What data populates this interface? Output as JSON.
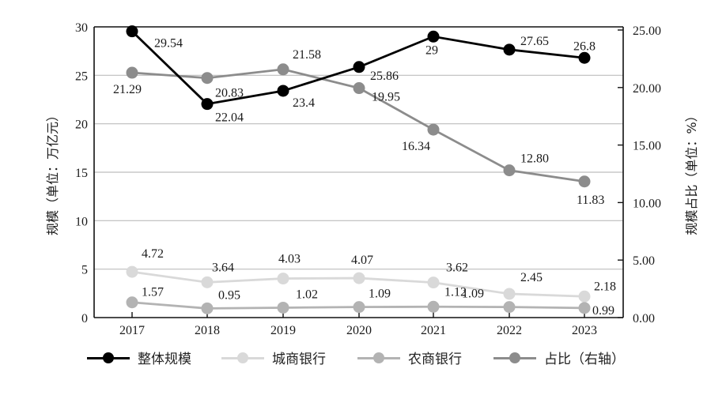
{
  "chart_data": {
    "type": "line",
    "title": "",
    "categories": [
      "2017",
      "2018",
      "2019",
      "2020",
      "2021",
      "2022",
      "2023"
    ],
    "series": [
      {
        "name": "整体规模",
        "axis": "left",
        "color": "#000000",
        "values": [
          29.54,
          22.04,
          23.4,
          25.86,
          29,
          27.65,
          26.8
        ],
        "labels": [
          "29.54",
          "22.04",
          "23.4",
          "25.86",
          "29",
          "27.65",
          "26.8"
        ]
      },
      {
        "name": "城商银行",
        "axis": "left",
        "color": "#d9d9d9",
        "values": [
          4.72,
          3.64,
          4.03,
          4.07,
          3.62,
          2.45,
          2.18
        ],
        "labels": [
          "4.72",
          "3.64",
          "4.03",
          "4.07",
          "3.62",
          "2.45",
          "2.18"
        ]
      },
      {
        "name": "农商银行",
        "axis": "left",
        "color": "#b3b3b3",
        "values": [
          1.57,
          0.95,
          1.02,
          1.09,
          1.12,
          1.09,
          0.99
        ],
        "labels": [
          "1.57",
          "0.95",
          "1.02",
          "1.09",
          "1.12",
          "1.09",
          "0.99"
        ]
      },
      {
        "name": "占比（右轴）",
        "axis": "right",
        "color": "#8c8c8c",
        "values": [
          21.29,
          20.83,
          21.58,
          19.95,
          16.34,
          12.8,
          11.83
        ],
        "labels": [
          "21.29",
          "20.83",
          "21.58",
          "19.95",
          "16.34",
          "12.80",
          "11.83"
        ]
      }
    ],
    "ylabel": "规模（单位：万亿元）",
    "ylabel_right": "规模占比（单位：%）",
    "ylim": [
      0,
      30
    ],
    "ylim_right": [
      0,
      25
    ],
    "yticks": [
      "0",
      "5",
      "10",
      "15",
      "20",
      "25",
      "30"
    ],
    "yticks_right": [
      "0.00",
      "5.00",
      "10.00",
      "15.00",
      "20.00",
      "25.00"
    ],
    "grid": true,
    "legend_position": "bottom"
  },
  "legend": [
    {
      "label": "整体规模",
      "color": "#000000"
    },
    {
      "label": "城商银行",
      "color": "#d9d9d9"
    },
    {
      "label": "农商银行",
      "color": "#b3b3b3"
    },
    {
      "label": "占比（右轴）",
      "color": "#8c8c8c"
    }
  ]
}
